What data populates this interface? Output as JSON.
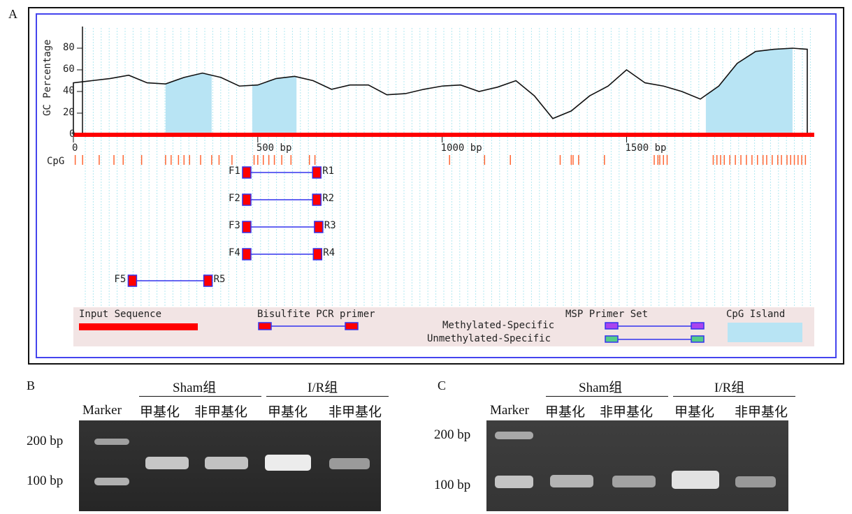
{
  "panel_a": {
    "letter": "A",
    "y_axis_label": "GC Percentage",
    "y_ticks": [
      "0",
      "20",
      "40",
      "60",
      "80"
    ],
    "x_ticks": [
      {
        "label": "0",
        "bp": 0
      },
      {
        "label": "500 bp",
        "bp": 500
      },
      {
        "label": "1000 bp",
        "bp": 1000
      },
      {
        "label": "1500 bp",
        "bp": 1500
      }
    ],
    "cpg_label": "CpG",
    "primers": [
      {
        "f": "F1",
        "r": "R1",
        "start_bp": 470,
        "end_bp": 660
      },
      {
        "f": "F2",
        "r": "R2",
        "start_bp": 470,
        "end_bp": 660
      },
      {
        "f": "F3",
        "r": "R3",
        "start_bp": 470,
        "end_bp": 665
      },
      {
        "f": "F4",
        "r": "R4",
        "start_bp": 470,
        "end_bp": 662
      },
      {
        "f": "F5",
        "r": "R5",
        "start_bp": 160,
        "end_bp": 365
      }
    ],
    "legend": {
      "input_sequence": "Input Sequence",
      "bisulfite": "Bisulfite PCR primer",
      "msp": "MSP Primer Set",
      "methylated": "Methylated-Specific",
      "unmethylated": "Unmethylated-Specific",
      "cpg_island": "CpG Island"
    },
    "colors": {
      "sequence": "#ff0000",
      "island": "#b8e4f4",
      "primer_line": "#3333ee",
      "primer_box": "#ff0000",
      "methylated_box": "#aa44ee",
      "unmethylated_box": "#55cc88",
      "grid": "#b0e8f0"
    }
  },
  "chart_data": {
    "type": "line",
    "title": "",
    "xlabel": "",
    "ylabel": "GC Percentage",
    "xlim": [
      0,
      1990
    ],
    "ylim": [
      0,
      100
    ],
    "series": [
      {
        "x": [
          0,
          50,
          100,
          150,
          200,
          250,
          300,
          350,
          400,
          450,
          500,
          550,
          600,
          650,
          700,
          750,
          800,
          850,
          900,
          950,
          1000,
          1050,
          1100,
          1150,
          1200,
          1250,
          1300,
          1350,
          1400,
          1450,
          1500,
          1550,
          1600,
          1650,
          1700,
          1750,
          1800,
          1850,
          1900,
          1950,
          1990
        ],
        "values": [
          48,
          50,
          52,
          55,
          48,
          47,
          53,
          57,
          53,
          45,
          46,
          52,
          54,
          50,
          42,
          46,
          46,
          37,
          38,
          42,
          45,
          46,
          40,
          44,
          50,
          36,
          15,
          22,
          36,
          45,
          60,
          48,
          45,
          40,
          33,
          45,
          66,
          77,
          79,
          80,
          79
        ]
      }
    ],
    "cpg_islands_bp": [
      [
        250,
        375
      ],
      [
        485,
        605
      ],
      [
        1715,
        1950
      ]
    ],
    "cpg_sites_bp": [
      5,
      25,
      70,
      110,
      135,
      185,
      250,
      265,
      285,
      300,
      315,
      345,
      375,
      395,
      430,
      490,
      500,
      515,
      530,
      545,
      565,
      590,
      640,
      655,
      1020,
      1115,
      1185,
      1320,
      1350,
      1355,
      1370,
      1440,
      1575,
      1585,
      1590,
      1600,
      1610,
      1735,
      1745,
      1755,
      1765,
      1780,
      1795,
      1810,
      1825,
      1840,
      1855,
      1870,
      1880,
      1895,
      1910,
      1920,
      1935,
      1945,
      1955,
      1965,
      1975,
      1985
    ]
  },
  "panel_b": {
    "letter": "B",
    "group1": "Sham组",
    "group2": "I/R组",
    "lanes": [
      "Marker",
      "甲基化",
      "非甲基化",
      "甲基化",
      "非甲基化"
    ],
    "size_200": "200 bp",
    "size_100": "100 bp"
  },
  "panel_c": {
    "letter": "C",
    "group1": "Sham组",
    "group2": "I/R组",
    "lanes": [
      "Marker",
      "甲基化",
      "非甲基化",
      "甲基化",
      "非甲基化"
    ],
    "size_200": "200 bp",
    "size_100": "100 bp"
  }
}
